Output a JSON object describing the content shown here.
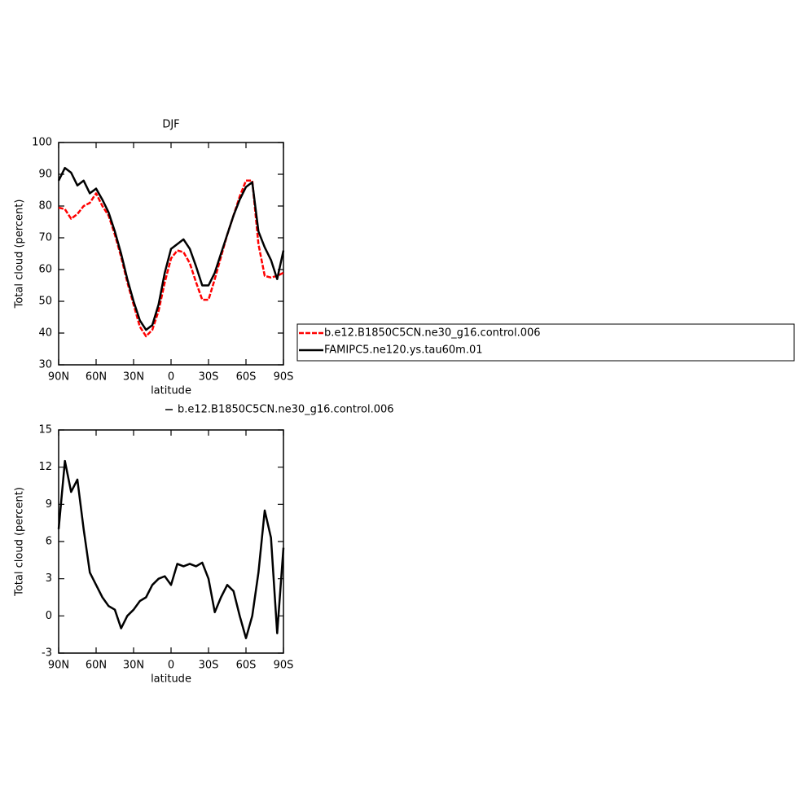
{
  "chart_data": [
    {
      "type": "line",
      "title": "DJF",
      "xlabel": "latitude",
      "ylabel": "Total cloud (percent)",
      "x": [
        90,
        85,
        80,
        75,
        70,
        65,
        60,
        55,
        50,
        45,
        40,
        35,
        30,
        25,
        20,
        15,
        10,
        5,
        0,
        -5,
        -10,
        -15,
        -20,
        -25,
        -30,
        -35,
        -40,
        -45,
        -50,
        -55,
        -60,
        -65,
        -70,
        -75,
        -80,
        -85,
        -90
      ],
      "series": [
        {
          "name": "b.e12.B1850C5CN.ne30_g16.control.006",
          "color": "#ff0000",
          "dashed": true,
          "values": [
            79.5,
            79,
            76,
            77.5,
            80,
            81,
            84,
            80,
            77,
            71,
            64,
            56,
            49,
            42,
            39,
            41,
            47,
            56,
            63.5,
            66,
            65.5,
            62,
            56,
            50.5,
            50.5,
            57,
            64,
            71,
            77,
            83,
            88,
            88,
            68,
            58,
            57.5,
            58,
            59
          ]
        },
        {
          "name": "FAMIPC5.ne120.ys.tau60m.01",
          "color": "#000000",
          "dashed": false,
          "values": [
            88,
            92,
            90.5,
            86.5,
            88,
            84,
            85.5,
            82,
            78,
            72,
            65,
            57,
            50,
            44,
            41,
            42.5,
            49,
            59,
            66.5,
            68,
            69.5,
            66.5,
            61,
            55,
            55,
            59,
            65,
            71,
            77,
            82,
            86,
            87.5,
            72,
            67,
            63,
            57,
            66
          ]
        }
      ],
      "xlim": [
        90,
        -90
      ],
      "xticks": [
        {
          "value": 90,
          "label": "90N"
        },
        {
          "value": 60,
          "label": "60N"
        },
        {
          "value": 30,
          "label": "30N"
        },
        0,
        {
          "value": -30,
          "label": "30S"
        },
        {
          "value": -60,
          "label": "60S"
        },
        {
          "value": -90,
          "label": "90S"
        }
      ],
      "ylim": [
        30,
        100
      ],
      "yticks": [
        30,
        40,
        50,
        60,
        70,
        80,
        90,
        100
      ]
    },
    {
      "type": "line",
      "xlabel": "latitude",
      "ylabel": "Total cloud (percent)",
      "x": [
        90,
        85,
        80,
        75,
        70,
        65,
        60,
        55,
        50,
        45,
        40,
        35,
        30,
        25,
        20,
        15,
        10,
        5,
        0,
        -5,
        -10,
        -15,
        -20,
        -25,
        -30,
        -35,
        -40,
        -45,
        -50,
        -55,
        -60,
        -65,
        -70,
        -75,
        -80,
        -85,
        -90
      ],
      "series": [
        {
          "name": "b.e12.B1850C5CN.ne30_g16.control.006",
          "color": "#000000",
          "dashed": false,
          "values": [
            7,
            12.5,
            10,
            11,
            7,
            3.5,
            2.5,
            1.5,
            0.8,
            0.5,
            -1,
            0,
            0.5,
            1.2,
            1.5,
            2.5,
            3,
            3.2,
            2.5,
            4.2,
            4,
            4.2,
            4,
            4.3,
            3,
            0.3,
            1.5,
            2.5,
            2,
            0,
            -1.8,
            0,
            3.5,
            8.5,
            6.3,
            -1.4,
            5.5
          ]
        }
      ],
      "xlim": [
        90,
        -90
      ],
      "xticks": [
        {
          "value": 90,
          "label": "90N"
        },
        {
          "value": 60,
          "label": "60N"
        },
        {
          "value": 30,
          "label": "30N"
        },
        0,
        {
          "value": -30,
          "label": "30S"
        },
        {
          "value": -60,
          "label": "60S"
        },
        {
          "value": -90,
          "label": "90S"
        }
      ],
      "ylim": [
        -3,
        15
      ],
      "yticks": [
        -3,
        0,
        3,
        6,
        9,
        12,
        15
      ]
    }
  ]
}
